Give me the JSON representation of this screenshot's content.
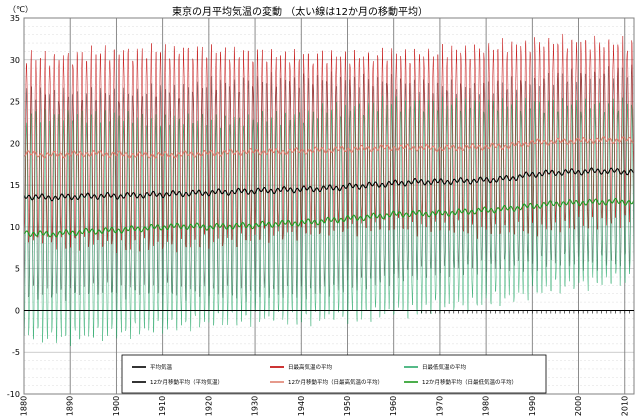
{
  "chart_data": {
    "type": "line",
    "title": "東京の月平均気温の変動 （太い線は12か月の移動平均）",
    "ylabel": "（℃）",
    "xlabel": "",
    "xlim": [
      1880,
      2012
    ],
    "ylim": [
      -10,
      35
    ],
    "x_ticks": [
      1880,
      1890,
      1900,
      1910,
      1920,
      1930,
      1940,
      1950,
      1960,
      1970,
      1980,
      1990,
      2000,
      2010
    ],
    "y_ticks": [
      -10,
      -5,
      0,
      5,
      10,
      15,
      20,
      25,
      30,
      35
    ],
    "grid": true,
    "legend_position": "bottom",
    "series": [
      {
        "name": "平均気温",
        "kind": "monthly",
        "color": "#606060",
        "x": [
          1880,
          1885,
          1890,
          1895,
          1900,
          1905,
          1910,
          1915,
          1920,
          1925,
          1930,
          1935,
          1940,
          1945,
          1950,
          1955,
          1960,
          1965,
          1970,
          1975,
          1980,
          1985,
          1990,
          1995,
          2000,
          2005,
          2011
        ],
        "peak": [
          26.5,
          26.3,
          26.4,
          26.5,
          26.6,
          26.5,
          26.6,
          26.7,
          26.8,
          26.8,
          27.0,
          26.9,
          27.1,
          27.2,
          27.3,
          27.4,
          27.5,
          27.4,
          27.2,
          27.3,
          27.4,
          27.5,
          27.8,
          27.9,
          28.0,
          28.0,
          28.1
        ],
        "trough": [
          1.8,
          1.6,
          1.6,
          1.8,
          1.8,
          1.9,
          2.0,
          2.2,
          2.2,
          2.4,
          2.5,
          2.6,
          2.7,
          2.8,
          3.1,
          3.4,
          3.8,
          4.0,
          4.2,
          4.4,
          4.6,
          4.8,
          5.3,
          5.6,
          5.8,
          6.0,
          6.1
        ]
      },
      {
        "name": "日最高気温の平均",
        "kind": "monthly",
        "color": "#c00000",
        "x": [
          1880,
          1885,
          1890,
          1895,
          1900,
          1905,
          1910,
          1915,
          1920,
          1925,
          1930,
          1935,
          1940,
          1945,
          1950,
          1955,
          1960,
          1965,
          1970,
          1975,
          1980,
          1985,
          1990,
          1995,
          2000,
          2005,
          2011
        ],
        "peak": [
          30.6,
          30.4,
          30.5,
          30.5,
          30.6,
          30.4,
          30.5,
          30.6,
          30.6,
          30.5,
          30.7,
          30.6,
          30.8,
          30.9,
          31.0,
          31.0,
          31.1,
          31.0,
          30.9,
          31.0,
          31.0,
          31.1,
          31.4,
          31.5,
          31.6,
          31.6,
          31.8
        ],
        "trough": [
          8.2,
          8.0,
          8.0,
          8.2,
          8.2,
          8.3,
          8.4,
          8.5,
          8.6,
          8.7,
          8.8,
          8.9,
          9.0,
          9.1,
          9.3,
          9.4,
          9.6,
          9.7,
          9.8,
          9.9,
          10.0,
          10.1,
          10.4,
          10.6,
          10.8,
          10.9,
          11.0
        ]
      },
      {
        "name": "日最低気温の平均",
        "kind": "monthly",
        "color": "#2aa86a",
        "x": [
          1880,
          1885,
          1890,
          1895,
          1900,
          1905,
          1910,
          1915,
          1920,
          1925,
          1930,
          1935,
          1940,
          1945,
          1950,
          1955,
          1960,
          1965,
          1970,
          1975,
          1980,
          1985,
          1990,
          1995,
          2000,
          2005,
          2011
        ],
        "peak": [
          22.8,
          22.6,
          22.8,
          22.9,
          23.0,
          22.9,
          23.1,
          23.2,
          23.3,
          23.4,
          23.5,
          23.5,
          23.7,
          23.9,
          24.1,
          24.2,
          24.3,
          24.3,
          24.1,
          24.3,
          24.4,
          24.5,
          24.8,
          25.0,
          25.1,
          25.1,
          25.3
        ],
        "trough": [
          -2.5,
          -2.7,
          -2.8,
          -2.6,
          -2.6,
          -2.4,
          -2.3,
          -2.1,
          -2.0,
          -1.8,
          -1.6,
          -1.4,
          -1.3,
          -1.0,
          -0.6,
          -0.2,
          0.3,
          0.6,
          0.9,
          1.1,
          1.4,
          1.6,
          2.1,
          2.4,
          2.7,
          2.9,
          3.0
        ]
      },
      {
        "name": "12か月移動平均（平均気温）",
        "kind": "smooth",
        "color": "#000000",
        "x": [
          1880,
          1885,
          1890,
          1895,
          1900,
          1905,
          1910,
          1915,
          1920,
          1925,
          1930,
          1935,
          1940,
          1945,
          1950,
          1955,
          1960,
          1965,
          1970,
          1975,
          1980,
          1985,
          1990,
          1995,
          2000,
          2005,
          2011
        ],
        "y": [
          13.7,
          13.5,
          13.6,
          13.7,
          13.7,
          13.8,
          13.9,
          14.0,
          14.1,
          14.2,
          14.3,
          14.4,
          14.5,
          14.6,
          14.8,
          15.0,
          15.2,
          15.4,
          15.4,
          15.5,
          15.6,
          15.8,
          16.3,
          16.5,
          16.6,
          16.7,
          16.6
        ]
      },
      {
        "name": "12か月移動平均（日最高気温の平均）",
        "kind": "smooth",
        "color": "#e08070",
        "x": [
          1880,
          1885,
          1890,
          1895,
          1900,
          1905,
          1910,
          1915,
          1920,
          1925,
          1930,
          1935,
          1940,
          1945,
          1950,
          1955,
          1960,
          1965,
          1970,
          1975,
          1980,
          1985,
          1990,
          1995,
          2000,
          2005,
          2011
        ],
        "y": [
          18.8,
          18.6,
          18.7,
          18.8,
          18.7,
          18.6,
          18.6,
          18.7,
          18.8,
          18.9,
          19.0,
          19.0,
          19.1,
          19.2,
          19.3,
          19.4,
          19.5,
          19.5,
          19.4,
          19.5,
          19.6,
          19.7,
          20.1,
          20.2,
          20.3,
          20.4,
          20.4
        ]
      },
      {
        "name": "12か月移動平均（日最低気温の平均）",
        "kind": "smooth",
        "color": "#1f9a1f",
        "x": [
          1880,
          1885,
          1890,
          1895,
          1900,
          1905,
          1910,
          1915,
          1920,
          1925,
          1930,
          1935,
          1940,
          1945,
          1950,
          1955,
          1960,
          1965,
          1970,
          1975,
          1980,
          1985,
          1990,
          1995,
          2000,
          2005,
          2011
        ],
        "y": [
          9.3,
          9.1,
          9.3,
          9.5,
          9.6,
          9.8,
          10.0,
          10.1,
          10.0,
          10.1,
          10.2,
          10.4,
          10.5,
          10.7,
          11.0,
          11.2,
          11.5,
          11.6,
          11.6,
          11.8,
          12.0,
          12.2,
          12.5,
          12.8,
          12.9,
          13.0,
          13.0
        ]
      }
    ],
    "legend": [
      {
        "label": "平均気温",
        "color": "#000000"
      },
      {
        "label": "日最高気温の平均",
        "color": "#c00000"
      },
      {
        "label": "日最低気温の平均",
        "color": "#2aa86a"
      },
      {
        "label": "12か月移動平均（平均気温）",
        "color": "#000000"
      },
      {
        "label": "12か月移動平均（日最高気温の平均）",
        "color": "#e08070"
      },
      {
        "label": "12か月移動平均（日最低気温の平均）",
        "color": "#1f9a1f"
      }
    ]
  }
}
